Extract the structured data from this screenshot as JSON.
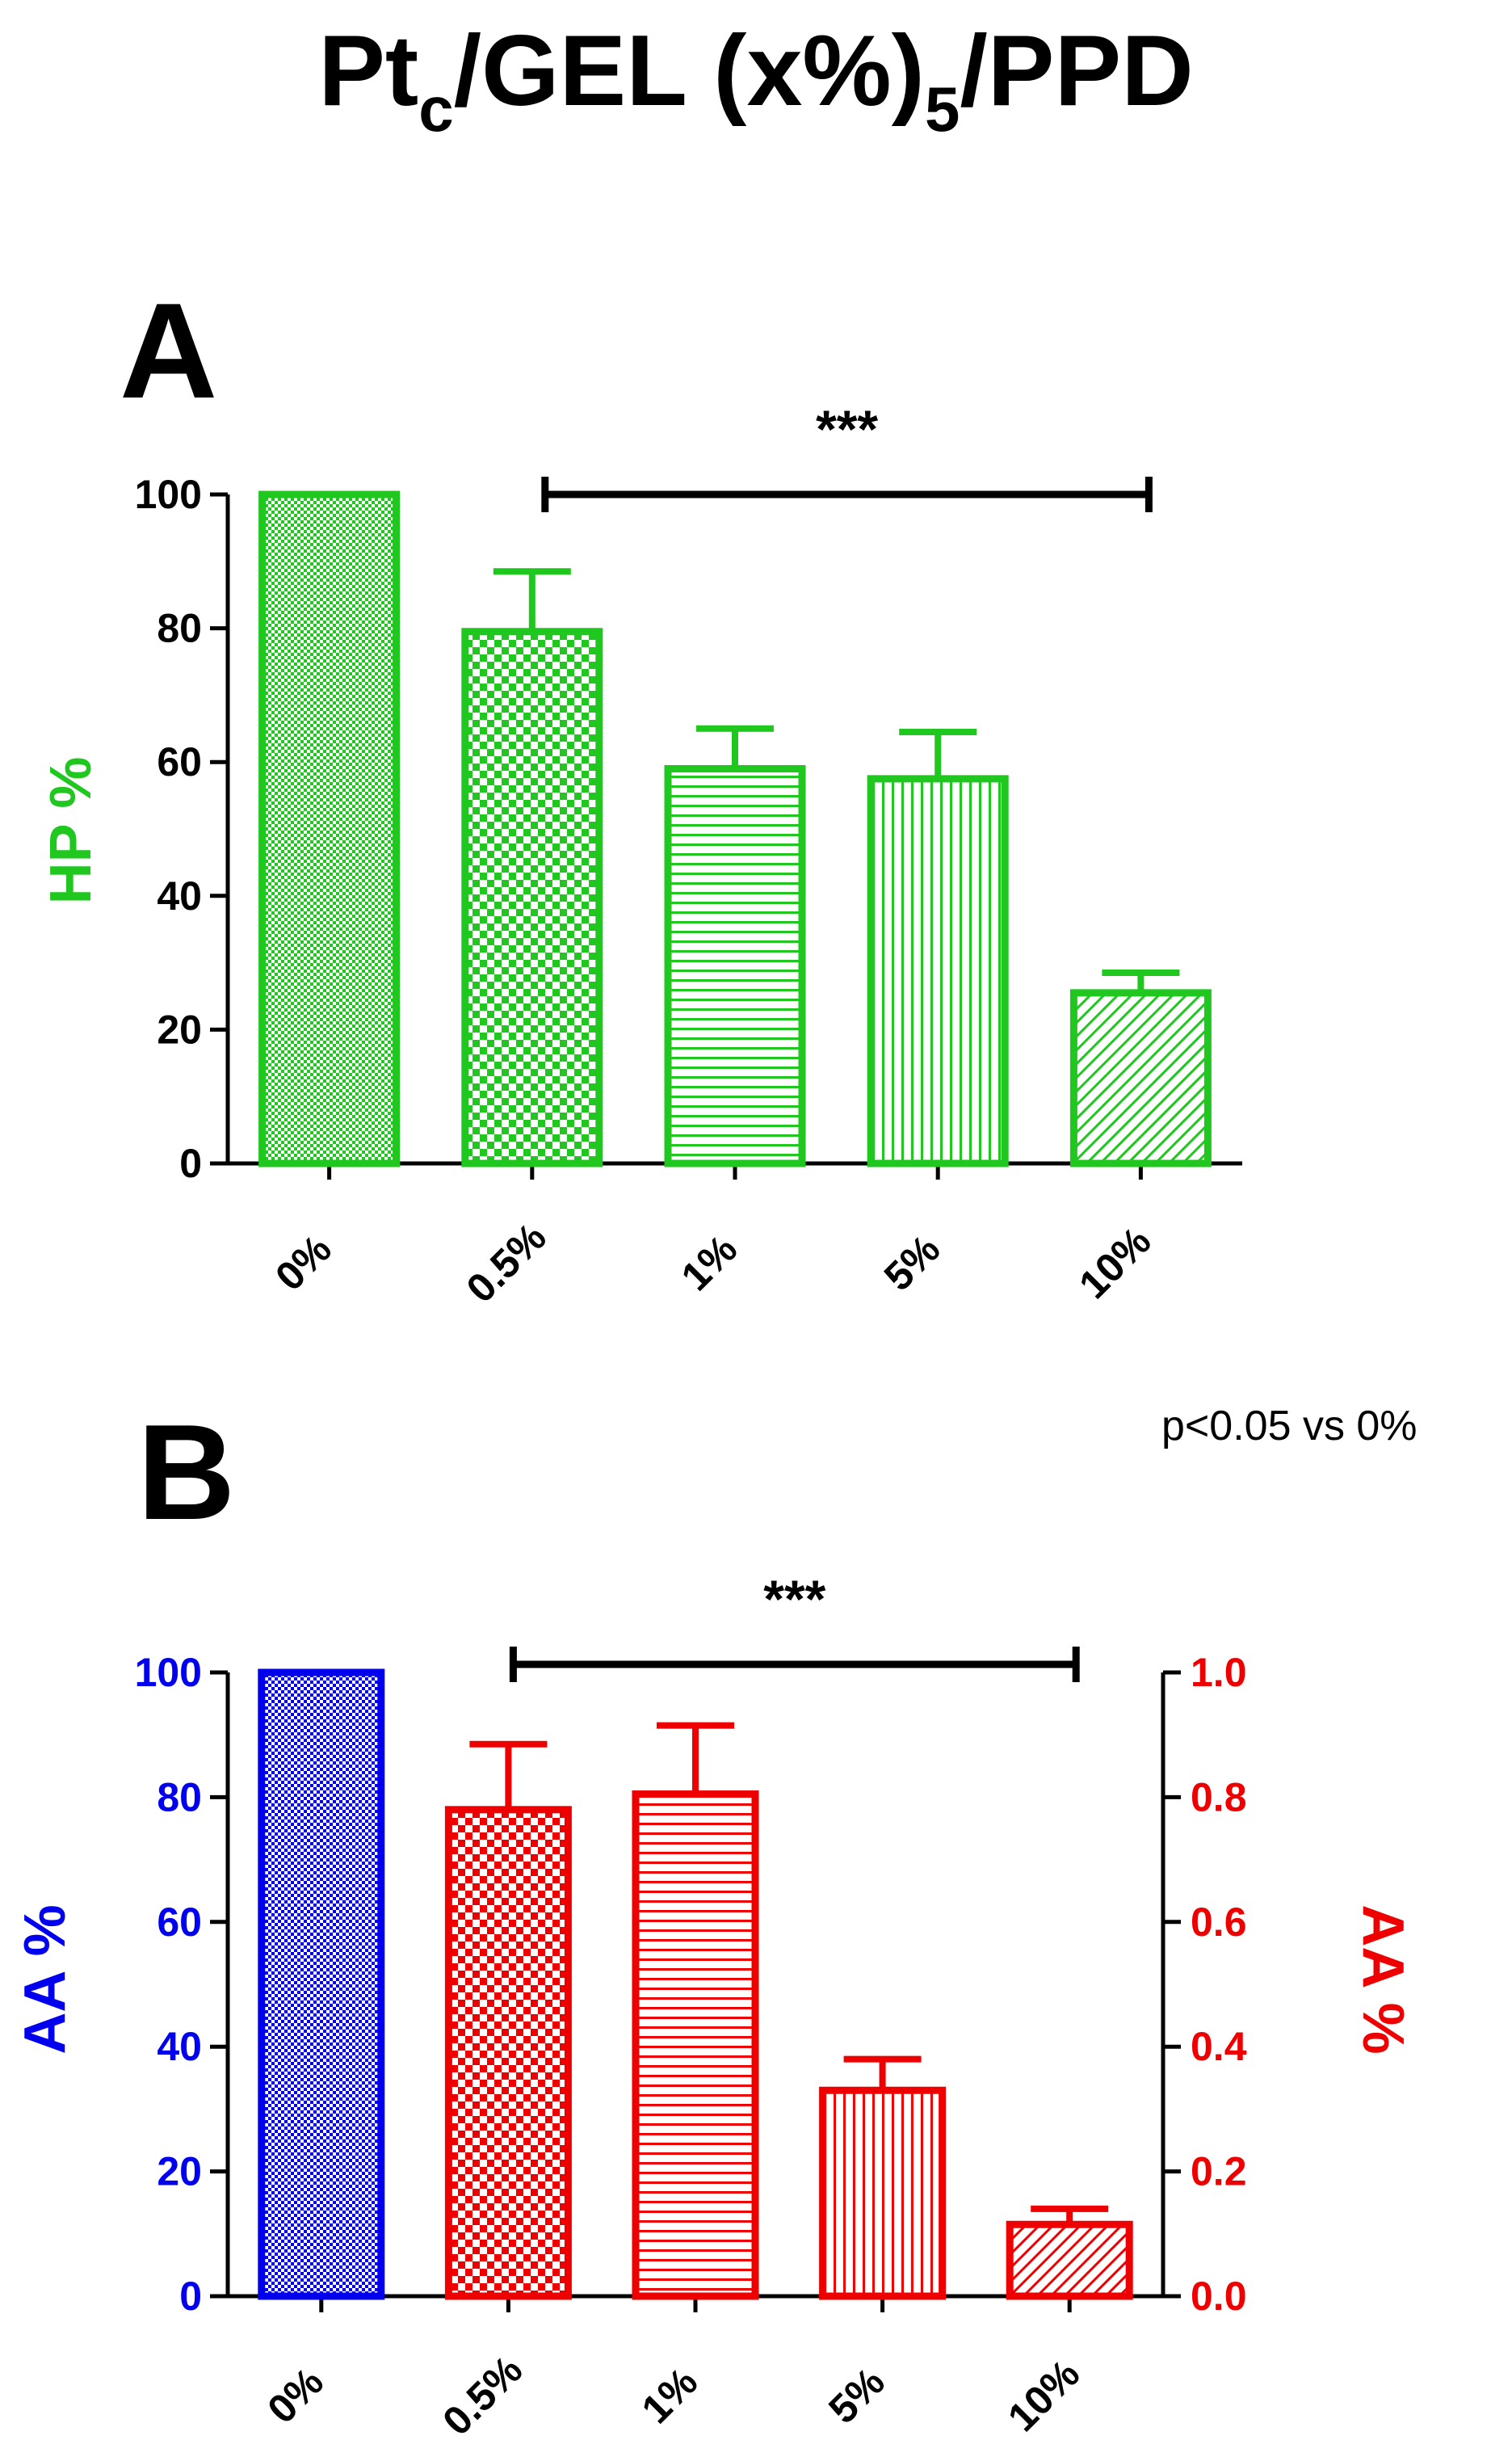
{
  "figure": {
    "title_main": "Pt",
    "title_sub1": "c",
    "title_mid": "/GEL (x%)",
    "title_sub2": "5",
    "title_end": "/PPD",
    "significance_note": "p<0.05 vs 0%"
  },
  "colors": {
    "green": "#1fc71f",
    "blue": "#0000ee",
    "red": "#ee0000",
    "black": "#000000"
  },
  "chart_data": [
    {
      "type": "bar",
      "panel_label": "A",
      "title": "",
      "categories": [
        "0%",
        "0.5%",
        "1%",
        "5%",
        "10%"
      ],
      "values": [
        100,
        79.5,
        59,
        57.5,
        25.5
      ],
      "errors": [
        0,
        9,
        6,
        7,
        3
      ],
      "ylabel": "HP %",
      "ylim": [
        0,
        100
      ],
      "yticks": [
        "0",
        "20",
        "40",
        "60",
        "80",
        "100"
      ],
      "significance": {
        "label": "***",
        "from": "0.5%",
        "to": "10%"
      },
      "patterns": [
        "fine-check",
        "check",
        "horizontal",
        "vertical",
        "diagonal"
      ]
    },
    {
      "type": "bar",
      "panel_label": "B",
      "title": "",
      "categories": [
        "0%",
        "0.5%",
        "1%",
        "5%",
        "10%"
      ],
      "values_left_axis": [
        100,
        null,
        null,
        null,
        null
      ],
      "values_right_axis": [
        null,
        0.78,
        0.805,
        0.33,
        0.115
      ],
      "errors_right_axis": [
        null,
        0.105,
        0.11,
        0.05,
        0.025
      ],
      "ylabel_left": "AA %",
      "ylim_left": [
        0,
        100
      ],
      "yticks_left": [
        "0",
        "20",
        "40",
        "60",
        "80",
        "100"
      ],
      "ylabel_right": "AA %",
      "ylim_right": [
        0,
        1.0
      ],
      "yticks_right": [
        "0.0",
        "0.2",
        "0.4",
        "0.6",
        "0.8",
        "1.0"
      ],
      "significance": {
        "label": "***",
        "from": "0.5%",
        "to": "10%"
      },
      "patterns": [
        "fine-check",
        "check",
        "horizontal",
        "vertical",
        "diagonal"
      ]
    }
  ]
}
